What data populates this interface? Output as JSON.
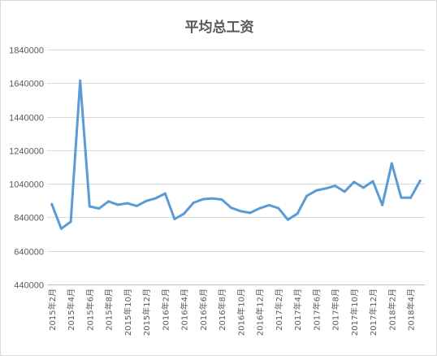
{
  "chart_data": {
    "type": "line",
    "title": "平均总工资",
    "xlabel": "",
    "ylabel": "",
    "ylim": [
      440000,
      1840000
    ],
    "yticks": [
      440000,
      640000,
      840000,
      1040000,
      1240000,
      1440000,
      1640000,
      1840000
    ],
    "ytick_labels": [
      "440000",
      "640000",
      "840000",
      "1040000",
      "1240000",
      "1440000",
      "1640000",
      "1840000"
    ],
    "grid": true,
    "legend": "none",
    "series_color": "#5b9bd5",
    "x": [
      "2015年2月",
      "2015年3月",
      "2015年4月",
      "2015年5月",
      "2015年6月",
      "2015年7月",
      "2015年8月",
      "2015年9月",
      "2015年10月",
      "2015年11月",
      "2015年12月",
      "2016年1月",
      "2016年2月",
      "2016年3月",
      "2016年4月",
      "2016年5月",
      "2016年6月",
      "2016年7月",
      "2016年8月",
      "2016年9月",
      "2016年10月",
      "2016年11月",
      "2016年12月",
      "2017年1月",
      "2017年2月",
      "2017年3月",
      "2017年4月",
      "2017年5月",
      "2017年6月",
      "2017年7月",
      "2017年8月",
      "2017年9月",
      "2017年10月",
      "2017年11月",
      "2017年12月",
      "2018年1月",
      "2018年2月",
      "2018年3月",
      "2018年4月",
      "2018年5月"
    ],
    "xtick_labels": [
      "2015年2月",
      "2015年4月",
      "2015年6月",
      "2015年8月",
      "2015年10月",
      "2015年12月",
      "2016年2月",
      "2016年4月",
      "2016年6月",
      "2016年8月",
      "2016年10月",
      "2016年12月",
      "2017年2月",
      "2017年4月",
      "2017年6月",
      "2017年8月",
      "2017年10月",
      "2017年12月",
      "2018年2月",
      "2018年4月"
    ],
    "series": [
      {
        "values": [
          918000,
          773000,
          814000,
          1655000,
          905000,
          893000,
          935000,
          915000,
          924000,
          908000,
          938000,
          954000,
          982000,
          830000,
          862000,
          927000,
          948000,
          953000,
          946000,
          897000,
          877000,
          867000,
          894000,
          913000,
          895000,
          826000,
          862000,
          968000,
          1000000,
          1012000,
          1028000,
          993000,
          1051000,
          1017000,
          1055000,
          914000,
          1162000,
          958000,
          957000,
          1058000
        ]
      }
    ]
  }
}
